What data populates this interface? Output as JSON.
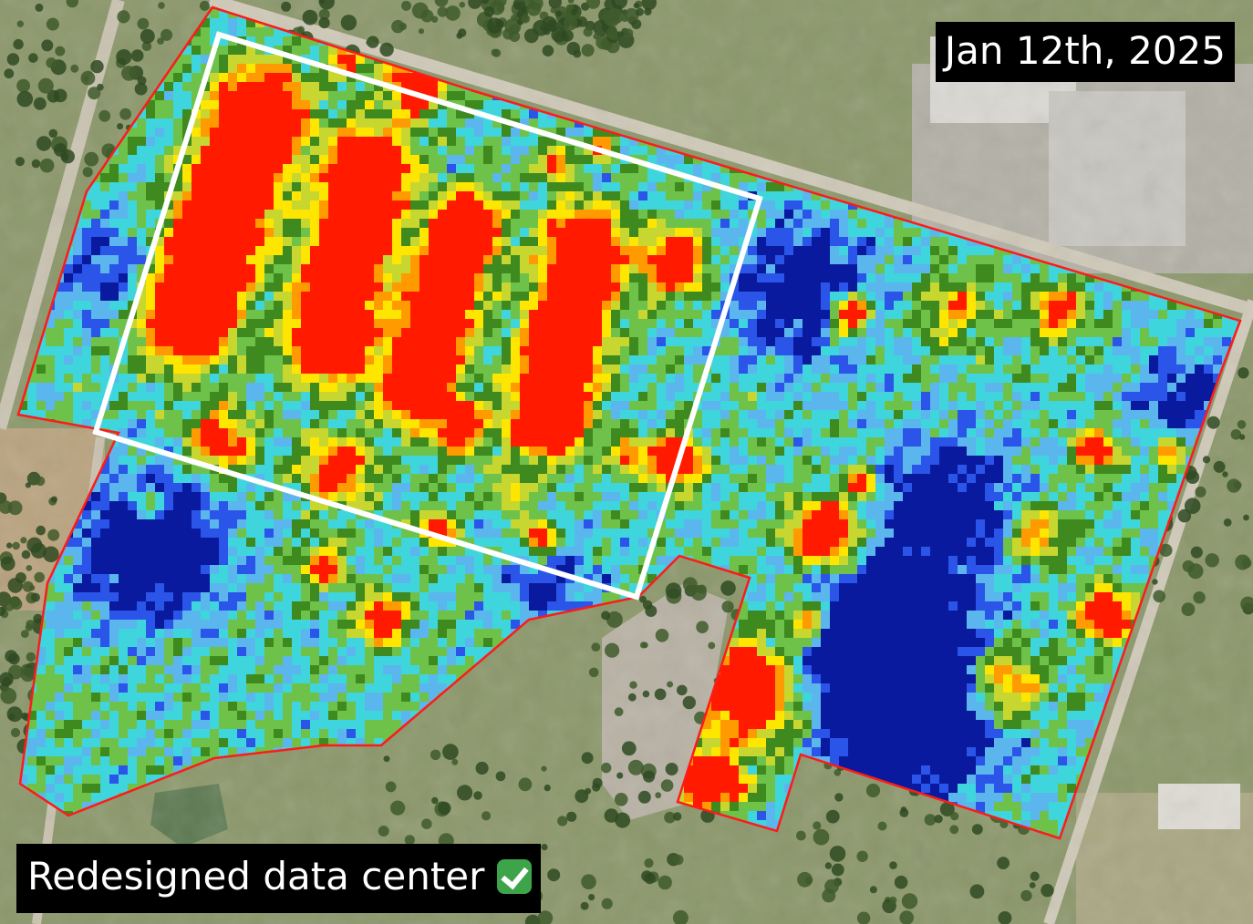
{
  "image": {
    "date": "Jan 12th, 2025",
    "caption": "Redesigned data center",
    "caption_icon": "check-mark-icon"
  },
  "colors": {
    "site_outline": "#ff1a1a",
    "focus_box": "#ffffff",
    "heat_scale": [
      "#0a1a9e",
      "#2a55e8",
      "#5ab6ec",
      "#3ed6dc",
      "#6ec24a",
      "#3f8a1e",
      "#c8d630",
      "#ffe600",
      "#ff9a00",
      "#ff1a00"
    ]
  }
}
